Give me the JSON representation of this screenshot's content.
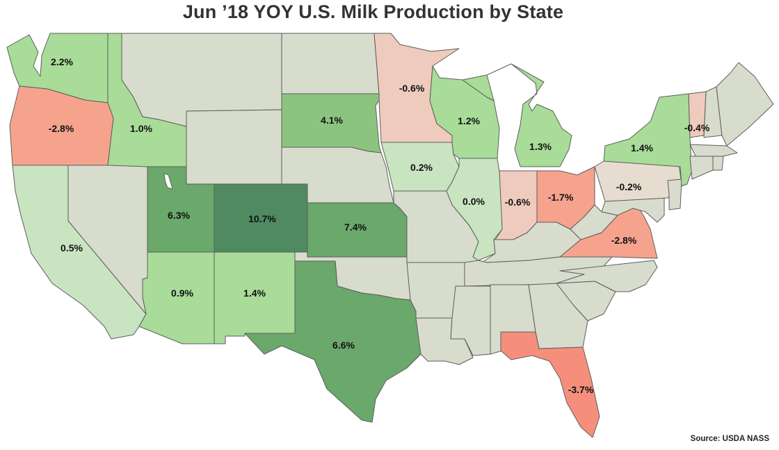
{
  "title": "Jun ’18 YOY U.S. Milk Production by State",
  "source": "Source: USDA NASS",
  "colors": {
    "neutral": "#d8dccd",
    "green_light": "#c9e4c0",
    "green": "#a8dc98",
    "green_mid": "#8cc47f",
    "green_dark": "#6aa86c",
    "green_darkest": "#4f8a61",
    "red_light": "#efcbbd",
    "red": "#f6a38e",
    "red_strong": "#f58f7c",
    "tan": "#e6dccf",
    "border": "#5c5c5c"
  },
  "chart_data": {
    "type": "choropleth",
    "metric": "YOY change in milk production, June 2018",
    "states": [
      {
        "state": "WA",
        "label": "2.2%",
        "value": 2.2
      },
      {
        "state": "OR",
        "label": "-2.8%",
        "value": -2.8
      },
      {
        "state": "ID",
        "label": "1.0%",
        "value": 1.0
      },
      {
        "state": "CA",
        "label": "0.5%",
        "value": 0.5
      },
      {
        "state": "UT",
        "label": "6.3%",
        "value": 6.3
      },
      {
        "state": "CO",
        "label": "10.7%",
        "value": 10.7
      },
      {
        "state": "AZ",
        "label": "0.9%",
        "value": 0.9
      },
      {
        "state": "NM",
        "label": "1.4%",
        "value": 1.4
      },
      {
        "state": "SD",
        "label": "4.1%",
        "value": 4.1
      },
      {
        "state": "KS",
        "label": "7.4%",
        "value": 7.4
      },
      {
        "state": "TX",
        "label": "6.6%",
        "value": 6.6
      },
      {
        "state": "MN",
        "label": "-0.6%",
        "value": -0.6
      },
      {
        "state": "IA",
        "label": "0.2%",
        "value": 0.2
      },
      {
        "state": "WI",
        "label": "1.2%",
        "value": 1.2
      },
      {
        "state": "IL",
        "label": "0.0%",
        "value": 0.0
      },
      {
        "state": "MI",
        "label": "1.3%",
        "value": 1.3
      },
      {
        "state": "IN",
        "label": "-0.6%",
        "value": -0.6
      },
      {
        "state": "OH",
        "label": "-1.7%",
        "value": -1.7
      },
      {
        "state": "NY",
        "label": "1.4%",
        "value": 1.4
      },
      {
        "state": "VT",
        "label": "-0.4%",
        "value": -0.4
      },
      {
        "state": "PA",
        "label": "-0.2%",
        "value": -0.2
      },
      {
        "state": "VA",
        "label": "-2.8%",
        "value": -2.8
      },
      {
        "state": "FL",
        "label": "-3.7%",
        "value": -3.7
      }
    ]
  }
}
